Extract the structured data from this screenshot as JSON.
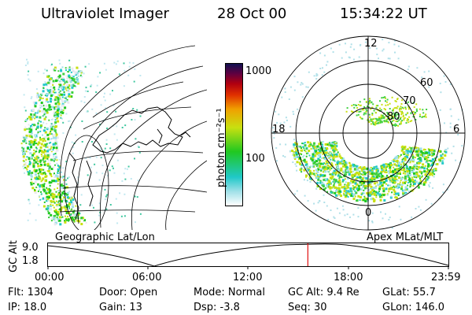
{
  "header": {
    "instrument": "Ultraviolet Imager",
    "date": "28 Oct 00",
    "time": "15:34:22 UT"
  },
  "colorbar": {
    "unit_label": "photon cm⁻²s⁻¹",
    "tick_1000": "1000",
    "tick_100": "100"
  },
  "geo_panel": {
    "label": "Geographic Lat/Lon"
  },
  "polar_panel": {
    "label": "Apex MLat/MLT",
    "mlt_top": "12",
    "mlt_left": "18",
    "mlt_right": "6",
    "mlt_bottom": "0",
    "lat_60": "60",
    "lat_70": "70",
    "lat_80": "80"
  },
  "altitude_plot": {
    "ylabel": "GC Alt",
    "ytick_top": "9.0",
    "ytick_bottom": "1.8",
    "xticks": [
      "00:00",
      "06:00",
      "12:00",
      "18:00",
      "23:59"
    ],
    "current_time_fraction": 0.649
  },
  "info": {
    "flt": "Flt: 1304",
    "door": "Door: Open",
    "mode": "Mode: Normal",
    "gcalt": "GC Alt: 9.4 Re",
    "glat": "GLat:  55.7",
    "ip": "IP: 18.0",
    "gain": "Gain: 13",
    "dsp": "Dsp:   -3.8",
    "seq": "Seq: 30",
    "glon": "GLon: 146.0"
  },
  "colors": {
    "cursor": "#e01010",
    "colorbar_stops": [
      "#ffffff",
      "#a0e0e8",
      "#20c8c8",
      "#20c820",
      "#c8e010",
      "#f0a000",
      "#e03000",
      "#b00010",
      "#600040",
      "#101050"
    ]
  }
}
